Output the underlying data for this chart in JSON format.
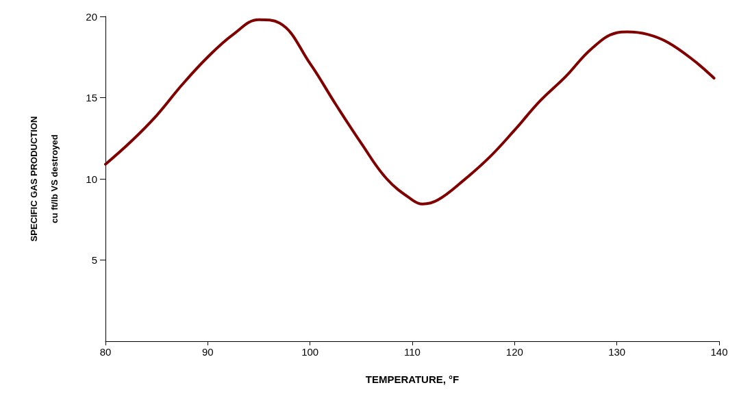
{
  "chart_data": {
    "type": "line",
    "xlabel": "TEMPERATURE, °F",
    "ylabel": "SPECIFIC GAS PRODUCTION\ncu ft/lb VS destroyed",
    "x": [
      80,
      82.5,
      85,
      87.5,
      90,
      92.5,
      95,
      97,
      100,
      102.5,
      105,
      107.5,
      110,
      111,
      112.5,
      115,
      117.5,
      120,
      122.5,
      125,
      127.5,
      130,
      131,
      133,
      135,
      137.5,
      139.5
    ],
    "series": [
      {
        "color": "#800000",
        "values": [
          10.9,
          12.3,
          13.9,
          15.8,
          17.5,
          18.9,
          19.8,
          19.6,
          17.1,
          14.6,
          12.2,
          10.0,
          8.7,
          8.45,
          8.7,
          9.9,
          11.3,
          13.0,
          14.8,
          16.3,
          18.0,
          19.0,
          19.05,
          18.9,
          18.4,
          17.3,
          16.2
        ]
      }
    ],
    "xlim": [
      80,
      140
    ],
    "xticks": [
      80,
      90,
      100,
      110,
      120,
      130,
      140
    ],
    "ylim": [
      0,
      20
    ],
    "yticks": [
      5,
      10,
      15,
      20
    ],
    "grid": false,
    "marker": "none",
    "line_style": "solid"
  }
}
